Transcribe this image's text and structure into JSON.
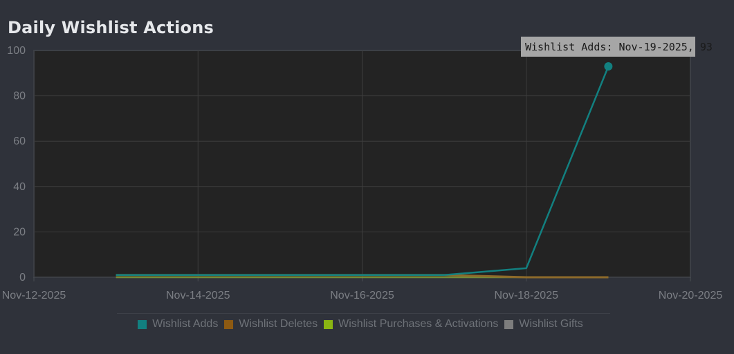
{
  "page": {
    "title": "Daily Wishlist Actions"
  },
  "tooltip": {
    "text": "Wishlist Adds: Nov-19-2025, 93"
  },
  "legend": [
    {
      "label": "Wishlist Adds",
      "color": "#128080"
    },
    {
      "label": "Wishlist Deletes",
      "color": "#8d5a12"
    },
    {
      "label": "Wishlist Purchases & Activations",
      "color": "#8ab512"
    },
    {
      "label": "Wishlist Gifts",
      "color": "#7d7d7d"
    }
  ],
  "chart_data": {
    "type": "line",
    "title": "Daily Wishlist Actions",
    "xlabel": "",
    "ylabel": "",
    "xlim": [
      "Nov-12-2025",
      "Nov-20-2025"
    ],
    "ylim": [
      0,
      100
    ],
    "x_ticks": [
      "Nov-12-2025",
      "Nov-14-2025",
      "Nov-16-2025",
      "Nov-18-2025",
      "Nov-20-2025"
    ],
    "y_ticks": [
      0,
      20,
      40,
      60,
      80,
      100
    ],
    "grid": true,
    "legend_position": "bottom",
    "x": [
      "Nov-13-2025",
      "Nov-14-2025",
      "Nov-15-2025",
      "Nov-16-2025",
      "Nov-17-2025",
      "Nov-18-2025",
      "Nov-19-2025"
    ],
    "series": [
      {
        "name": "Wishlist Adds",
        "color": "#128080",
        "values": [
          1,
          1,
          1,
          1,
          1,
          4,
          93
        ]
      },
      {
        "name": "Wishlist Deletes",
        "color": "#8d5a12",
        "values": [
          1,
          1,
          1,
          1,
          1,
          0,
          0
        ]
      },
      {
        "name": "Wishlist Purchases & Activations",
        "color": "#8ab512",
        "values": [
          0,
          0,
          0,
          0,
          0,
          0,
          0
        ]
      },
      {
        "name": "Wishlist Gifts",
        "color": "#7d7d7d",
        "values": [
          0,
          0,
          0,
          0,
          0,
          0,
          0
        ]
      }
    ],
    "highlight": {
      "series": "Wishlist Adds",
      "x": "Nov-19-2025",
      "y": 93
    }
  }
}
